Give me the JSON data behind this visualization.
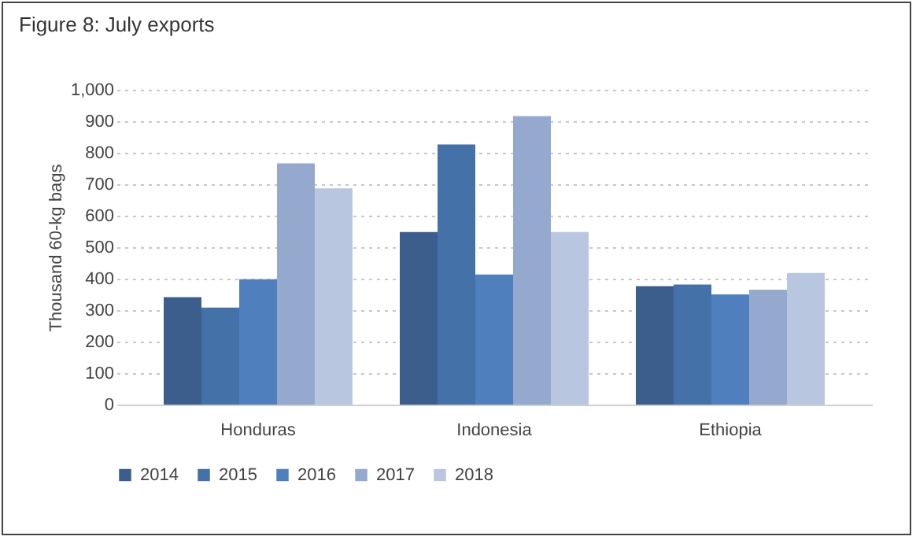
{
  "chart_data": {
    "type": "bar",
    "title": "Figure 8: July exports",
    "ylabel": "Thousand 60-kg bags",
    "categories": [
      "Honduras",
      "Indonesia",
      "Ethiopia"
    ],
    "series": [
      {
        "name": "2014",
        "color": "#3b5e8c",
        "values": [
          341,
          548,
          376
        ]
      },
      {
        "name": "2015",
        "color": "#4471a7",
        "values": [
          308,
          826,
          381
        ]
      },
      {
        "name": "2016",
        "color": "#4f80bd",
        "values": [
          398,
          413,
          350
        ]
      },
      {
        "name": "2017",
        "color": "#95a9cf",
        "values": [
          766,
          916,
          365
        ]
      },
      {
        "name": "2018",
        "color": "#b9c6e0",
        "values": [
          687,
          548,
          418
        ]
      }
    ],
    "ylim": [
      0,
      1000
    ],
    "yticks": [
      0,
      100,
      200,
      300,
      400,
      500,
      600,
      700,
      800,
      900,
      {
        "value": 1000,
        "label": "1,000"
      }
    ],
    "grid": "y",
    "legend": "bottom"
  }
}
